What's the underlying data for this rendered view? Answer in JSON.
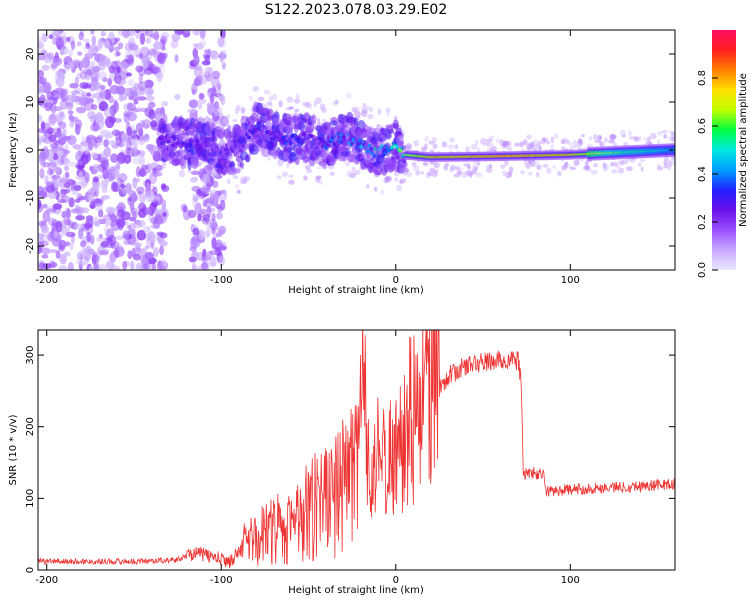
{
  "title": "S122.2023.078.03.29.E02",
  "colors": {
    "line": "#ee3333",
    "axis": "#000000",
    "colorbar": [
      "#e8e8ff",
      "#c8a8ff",
      "#9a50ff",
      "#6a10e8",
      "#2020ff",
      "#00a0ff",
      "#00e8e0",
      "#00ff40",
      "#c0ff00",
      "#ffe000",
      "#ff8000",
      "#ff2020",
      "#ff1060"
    ]
  },
  "chart_data": [
    {
      "type": "heatmap",
      "title": "",
      "xlabel": "Height of straight line (km)",
      "ylabel": "Frequency (Hz)",
      "xlim": [
        -205,
        160
      ],
      "ylim": [
        -25,
        25
      ],
      "xticks": [
        -200,
        -100,
        0,
        100
      ],
      "yticks": [
        -20,
        -10,
        0,
        10,
        20
      ],
      "colorbar_label": "Normalized spectral amplitude",
      "colorbar_ticks": [
        0.0,
        0.2,
        0.4,
        0.6,
        0.8
      ],
      "ridge": {
        "x": [
          -130,
          -120,
          -110,
          -100,
          -90,
          -80,
          -70,
          -60,
          -50,
          -40,
          -30,
          -20,
          -10,
          0,
          5,
          20,
          60,
          100,
          130,
          160
        ],
        "y": [
          2,
          1.5,
          1,
          0,
          0,
          5,
          3,
          2,
          2.5,
          1,
          3,
          1,
          -0.5,
          1,
          -1,
          -1.5,
          -1.3,
          -1,
          -0.5,
          0
        ],
        "amplitude": [
          0.25,
          0.3,
          0.25,
          0.3,
          0.3,
          0.35,
          0.3,
          0.35,
          0.3,
          0.35,
          0.4,
          0.45,
          0.5,
          0.5,
          0.7,
          0.85,
          0.9,
          0.85,
          0.6,
          0.5
        ]
      }
    },
    {
      "type": "line",
      "title": "",
      "xlabel": "Height of straight line (km)",
      "ylabel": "SNR (10 * v/v)",
      "xlim": [
        -205,
        160
      ],
      "ylim": [
        0,
        335
      ],
      "xticks": [
        -200,
        -100,
        0,
        100
      ],
      "yticks": [
        0,
        100,
        200,
        300
      ],
      "series": [
        {
          "name": "SNR",
          "x": [
            -205,
            -180,
            -150,
            -125,
            -115,
            -105,
            -95,
            -88,
            -80,
            -70,
            -60,
            -50,
            -40,
            -30,
            -22,
            -19,
            -15,
            -10,
            -5,
            0,
            5,
            10,
            15,
            20,
            25,
            30,
            40,
            50,
            60,
            70,
            72,
            73,
            80,
            85,
            86,
            100,
            120,
            140,
            160
          ],
          "y": [
            12,
            12,
            12,
            14,
            25,
            18,
            12,
            30,
            40,
            50,
            60,
            70,
            90,
            110,
            140,
            240,
            130,
            150,
            160,
            165,
            180,
            200,
            230,
            250,
            255,
            270,
            285,
            290,
            292,
            293,
            260,
            135,
            135,
            132,
            110,
            112,
            115,
            117,
            120
          ]
        }
      ]
    }
  ]
}
